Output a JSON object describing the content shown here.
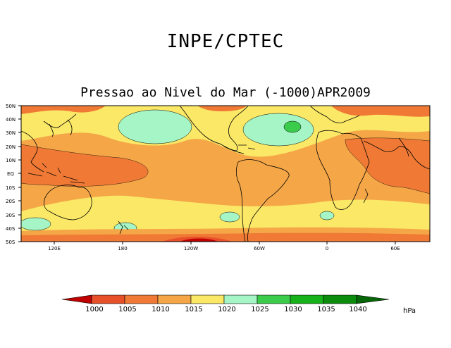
{
  "header": {
    "title": "INPE/CPTEC",
    "subtitle": "Pressao ao Nivel do Mar (-1000)APR2009"
  },
  "map": {
    "lat_labels": [
      "50N",
      "40N",
      "30N",
      "20N",
      "10N",
      "EQ",
      "10S",
      "20S",
      "30S",
      "40S",
      "50S"
    ],
    "lon_labels": [
      "120E",
      "180",
      "120W",
      "60W",
      "0",
      "60E"
    ]
  },
  "colorbar": {
    "levels": [
      "1000",
      "1005",
      "1010",
      "1015",
      "1020",
      "1025",
      "1030",
      "1035",
      "1040"
    ],
    "colors": [
      "#c00000",
      "#e8502a",
      "#f07a35",
      "#f5a748",
      "#fbe867",
      "#a6f5c6",
      "#3ccc4c",
      "#17b21a",
      "#0b8c0c",
      "#076607"
    ],
    "unit": "hPa"
  },
  "colors": {
    "bin_1005_1010": "#f07a35",
    "bin_1010_1015": "#f5a748",
    "bin_1015_1020": "#fbe867",
    "bin_1020_1025": "#a6f5c6",
    "bin_1025_1030": "#3ccc4c",
    "bin_1000_1005": "#e8502a",
    "coast": "#000000"
  }
}
